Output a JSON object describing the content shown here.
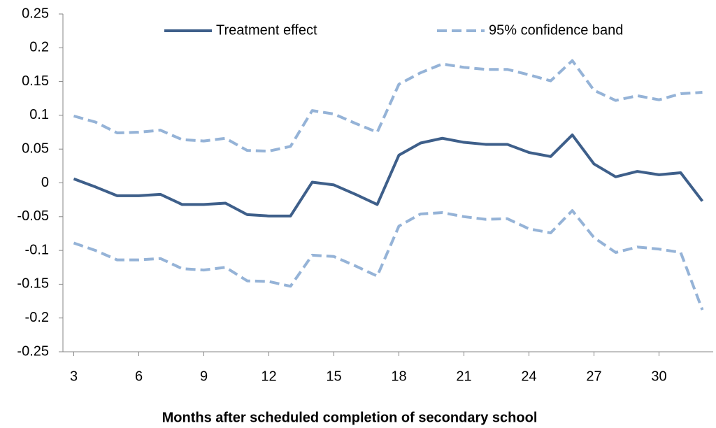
{
  "chart_data": {
    "type": "line",
    "x_label": "Months after scheduled completion of secondary school",
    "x": [
      3,
      4,
      5,
      6,
      7,
      8,
      9,
      10,
      11,
      12,
      13,
      14,
      15,
      16,
      17,
      18,
      19,
      20,
      21,
      22,
      23,
      24,
      25,
      26,
      27,
      28,
      29,
      30,
      31,
      32
    ],
    "xlim": [
      2.5,
      32.5
    ],
    "xticks": [
      3,
      6,
      9,
      12,
      15,
      18,
      21,
      24,
      27,
      30
    ],
    "ylim": [
      -0.25,
      0.25
    ],
    "yticks": [
      0.25,
      0.2,
      0.15,
      0.1,
      0.05,
      0,
      -0.05,
      -0.1,
      -0.15,
      -0.2,
      -0.25
    ],
    "grid": false,
    "legend": "top",
    "series": [
      {
        "name": "Treatment effect",
        "color": "#3e5f8a",
        "style": "solid",
        "values": [
          0.006,
          -0.006,
          -0.019,
          -0.019,
          -0.017,
          -0.032,
          -0.032,
          -0.03,
          -0.047,
          -0.049,
          -0.049,
          0.001,
          -0.003,
          -0.017,
          -0.032,
          0.041,
          0.059,
          0.066,
          0.06,
          0.057,
          0.057,
          0.045,
          0.039,
          0.071,
          0.028,
          0.009,
          0.017,
          0.012,
          0.015,
          -0.027
        ]
      },
      {
        "name": "95% confidence band",
        "color": "#95b3d7",
        "style": "dashed",
        "upper": [
          0.099,
          0.09,
          0.074,
          0.075,
          0.078,
          0.064,
          0.062,
          0.066,
          0.048,
          0.047,
          0.054,
          0.107,
          0.102,
          0.088,
          0.075,
          0.146,
          0.163,
          0.176,
          0.171,
          0.168,
          0.168,
          0.16,
          0.151,
          0.181,
          0.137,
          0.122,
          0.129,
          0.123,
          0.132,
          0.134
        ],
        "lower": [
          -0.089,
          -0.1,
          -0.114,
          -0.114,
          -0.112,
          -0.127,
          -0.129,
          -0.125,
          -0.145,
          -0.146,
          -0.153,
          -0.107,
          -0.109,
          -0.123,
          -0.138,
          -0.064,
          -0.046,
          -0.044,
          -0.05,
          -0.054,
          -0.053,
          -0.068,
          -0.074,
          -0.041,
          -0.081,
          -0.103,
          -0.095,
          -0.098,
          -0.103,
          -0.188
        ]
      }
    ]
  }
}
